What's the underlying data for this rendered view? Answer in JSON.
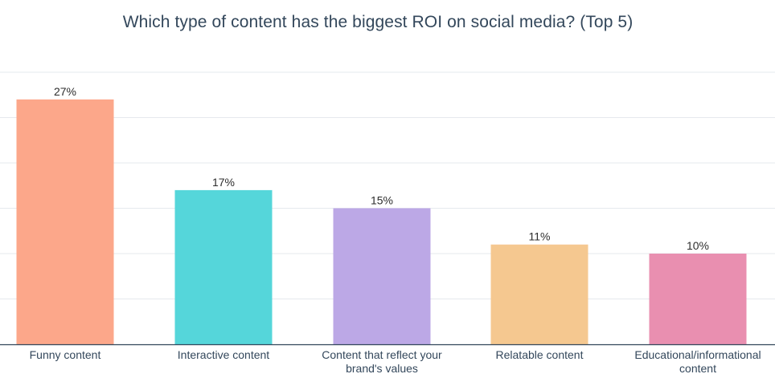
{
  "chart_data": {
    "type": "bar",
    "title": "Which type of content has the biggest ROI on social media? (Top 5)",
    "xlabel": "",
    "ylabel": "",
    "grid": true,
    "legend": "none",
    "categories": [
      "Funny content",
      "Interactive content",
      "Content that reflect your brand's values",
      "Relatable content",
      "Educational/informational content"
    ],
    "category_lines": [
      [
        "Funny content"
      ],
      [
        "Interactive content"
      ],
      [
        "Content that reflect your",
        "brand's values"
      ],
      [
        "Relatable content"
      ],
      [
        "Educational/informational",
        "content"
      ]
    ],
    "values": [
      27,
      17,
      15,
      11,
      10
    ],
    "value_labels": [
      "27%",
      "17%",
      "15%",
      "11%",
      "10%"
    ],
    "colors": [
      "#fca78a",
      "#55d6da",
      "#bca8e6",
      "#f5c890",
      "#e98fb0"
    ],
    "ylim": [
      0,
      30
    ]
  }
}
